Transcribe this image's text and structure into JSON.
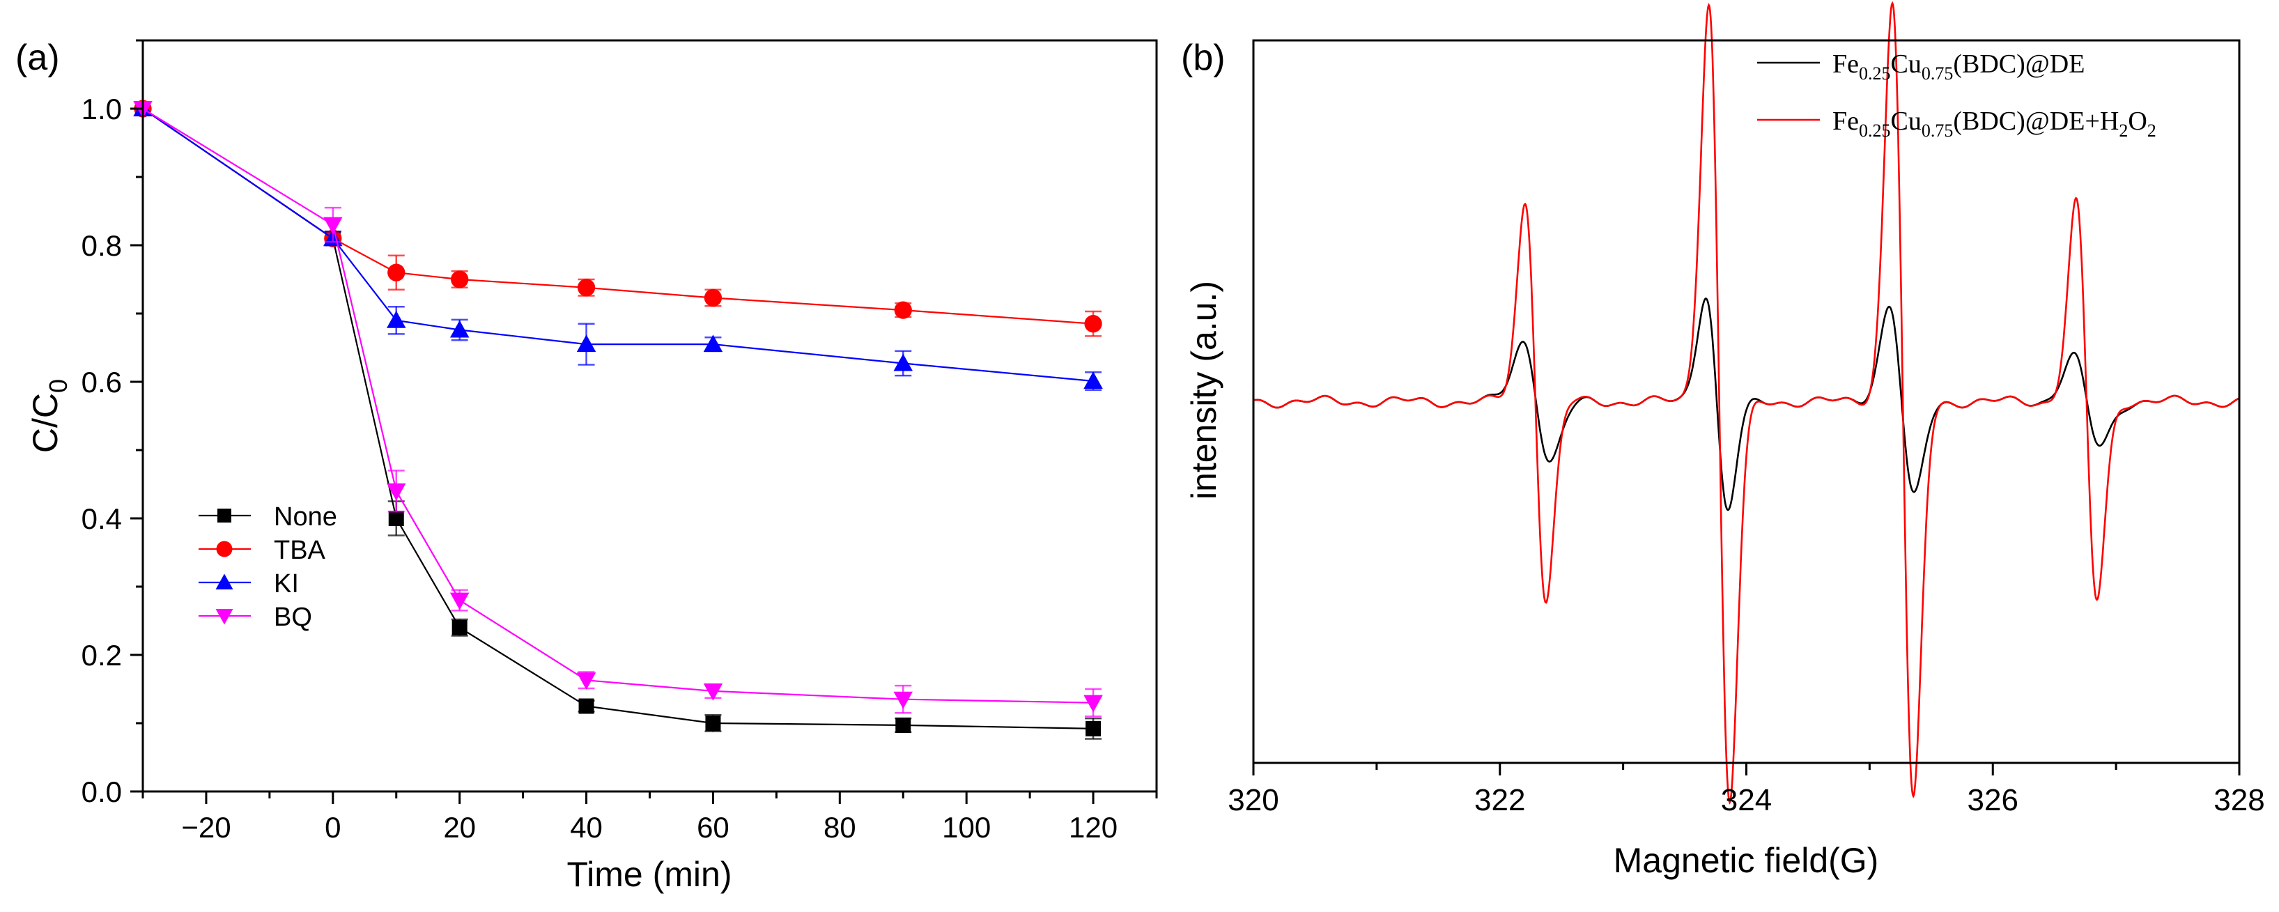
{
  "chart_data": [
    {
      "id": "a",
      "panel_label": "(a)",
      "type": "line",
      "xlabel": "Time (min)",
      "ylabel": "C/C",
      "ylabel_sub": "0",
      "xlim": [
        -30,
        130
      ],
      "ylim": [
        0,
        1.1
      ],
      "xticks": [
        -20,
        0,
        20,
        40,
        60,
        80,
        100,
        120
      ],
      "xtick_labels": [
        "−20",
        "0",
        "20",
        "40",
        "60",
        "80",
        "100",
        "120"
      ],
      "yticks": [
        0,
        0.2,
        0.4,
        0.6,
        0.8,
        1.0
      ],
      "ytick_labels": [
        "0.0",
        "0.2",
        "0.4",
        "0.6",
        "0.8",
        "1.0"
      ],
      "legend_position": "lower-left",
      "series": [
        {
          "name": "None",
          "color": "#000000",
          "marker": "square",
          "x": [
            -30,
            0,
            10,
            20,
            40,
            60,
            90,
            120
          ],
          "y": [
            1.0,
            0.81,
            0.4,
            0.24,
            0.125,
            0.1,
            0.097,
            0.092
          ],
          "err": [
            0,
            0.01,
            0.025,
            0.012,
            0.008,
            0.012,
            0.01,
            0.015
          ]
        },
        {
          "name": "TBA",
          "color": "#ff0000",
          "marker": "circle",
          "x": [
            -30,
            0,
            10,
            20,
            40,
            60,
            90,
            120
          ],
          "y": [
            1.0,
            0.81,
            0.76,
            0.75,
            0.738,
            0.723,
            0.705,
            0.685
          ],
          "err": [
            0,
            0.01,
            0.025,
            0.012,
            0.012,
            0.012,
            0.01,
            0.018
          ]
        },
        {
          "name": "KI",
          "color": "#0000ff",
          "marker": "triangle-up",
          "x": [
            -30,
            0,
            10,
            20,
            40,
            60,
            90,
            120
          ],
          "y": [
            1.0,
            0.81,
            0.69,
            0.676,
            0.655,
            0.655,
            0.627,
            0.601
          ],
          "err": [
            0,
            0.01,
            0.02,
            0.015,
            0.03,
            0.01,
            0.018,
            0.013
          ]
        },
        {
          "name": "BQ",
          "color": "#ff00ff",
          "marker": "triangle-down",
          "x": [
            -30,
            0,
            10,
            20,
            40,
            60,
            90,
            120
          ],
          "y": [
            1.0,
            0.83,
            0.44,
            0.28,
            0.163,
            0.147,
            0.135,
            0.13
          ],
          "err": [
            0,
            0.025,
            0.03,
            0.015,
            0.012,
            0.01,
            0.02,
            0.02
          ]
        }
      ]
    },
    {
      "id": "b",
      "panel_label": "(b)",
      "type": "line",
      "xlabel": "Magnetic field(G)",
      "ylabel": "intensity (a.u.)",
      "xlim": [
        320,
        328
      ],
      "ylim": [
        -1.2,
        1.2
      ],
      "xticks": [
        320,
        322,
        324,
        326,
        328
      ],
      "xtick_labels": [
        "320",
        "322",
        "324",
        "326",
        "328"
      ],
      "yticks": [],
      "legend_position": "top-right",
      "series": [
        {
          "name": "Fe0.25Cu0.75(BDC)@DE",
          "legend_parts": [
            "Fe",
            "0.25",
            "Cu",
            "0.75",
            "(BDC)@DE"
          ],
          "color": "#000000",
          "baseline": 0,
          "peaks": [
            {
              "center": 322.3,
              "amplitude": 0.2,
              "width": 0.11
            },
            {
              "center": 323.76,
              "amplitude": 0.36,
              "width": 0.09
            },
            {
              "center": 325.26,
              "amplitude": 0.32,
              "width": 0.1
            },
            {
              "center": 326.76,
              "amplitude": 0.15,
              "width": 0.11
            }
          ]
        },
        {
          "name": "Fe0.25Cu0.75(BDC)@DE+H2O2",
          "legend_parts": [
            "Fe",
            "0.25",
            "Cu",
            "0.75",
            "(BDC)@DE+H",
            "2",
            "O",
            "2"
          ],
          "color": "#ff0000",
          "baseline": 0,
          "peaks": [
            {
              "center": 322.29,
              "amplitude": 0.66,
              "width": 0.085
            },
            {
              "center": 323.78,
              "amplitude": 1.33,
              "width": 0.085
            },
            {
              "center": 325.27,
              "amplitude": 1.33,
              "width": 0.085
            },
            {
              "center": 326.76,
              "amplitude": 0.66,
              "width": 0.085
            }
          ]
        }
      ]
    }
  ]
}
